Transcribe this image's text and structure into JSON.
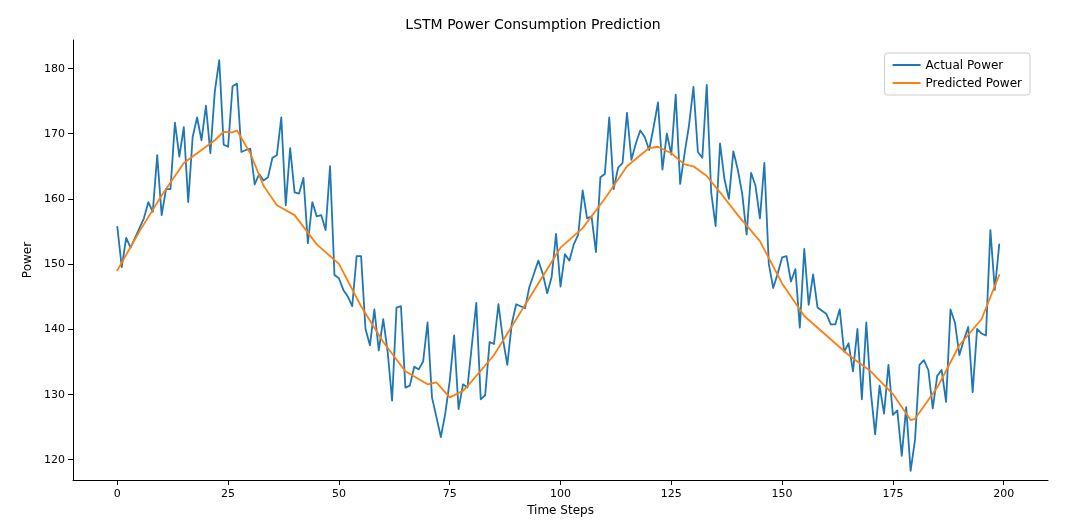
{
  "chart_data": {
    "type": "line",
    "title": "LSTM Power Consumption Prediction",
    "xlabel": "Time Steps",
    "ylabel": "Power",
    "xlim": [
      -10,
      210
    ],
    "xticks": [
      0,
      25,
      50,
      75,
      100,
      125,
      150,
      175,
      200
    ],
    "ylim": [
      116.8,
      184.4
    ],
    "yticks": [
      120,
      130,
      140,
      150,
      160,
      170,
      180
    ],
    "grid": false,
    "legend": "top right",
    "marker": "none",
    "line_style": "solid",
    "series": [
      {
        "name": "Actual Power",
        "color": "#1f77b4",
        "x": [
          0,
          1,
          2,
          3,
          4,
          5,
          6,
          7,
          8,
          9,
          10,
          11,
          12,
          13,
          14,
          15,
          16,
          17,
          18,
          19,
          20,
          21,
          22,
          23,
          24,
          25,
          26,
          27,
          28,
          29,
          30,
          31,
          32,
          33,
          34,
          35,
          36,
          37,
          38,
          39,
          40,
          41,
          42,
          43,
          44,
          45,
          46,
          47,
          48,
          49,
          50,
          51,
          52,
          53,
          54,
          55,
          56,
          57,
          58,
          59,
          60,
          61,
          62,
          63,
          64,
          65,
          66,
          67,
          68,
          69,
          70,
          71,
          72,
          73,
          74,
          75,
          76,
          77,
          78,
          79,
          80,
          81,
          82,
          83,
          84,
          85,
          86,
          87,
          88,
          89,
          90,
          91,
          92,
          93,
          94,
          95,
          96,
          97,
          98,
          99,
          100,
          101,
          102,
          103,
          104,
          105,
          106,
          107,
          108,
          109,
          110,
          111,
          112,
          113,
          114,
          115,
          116,
          117,
          118,
          119,
          120,
          121,
          122,
          123,
          124,
          125,
          126,
          127,
          128,
          129,
          130,
          131,
          132,
          133,
          134,
          135,
          136,
          137,
          138,
          139,
          140,
          141,
          142,
          143,
          144,
          145,
          146,
          147,
          148,
          149,
          150,
          151,
          152,
          153,
          154,
          155,
          156,
          157,
          158,
          159,
          160,
          161,
          162,
          163,
          164,
          165,
          166,
          167,
          168,
          169,
          170,
          171,
          172,
          173,
          174,
          175,
          176,
          177,
          178,
          179,
          180,
          181,
          182,
          183,
          184,
          185,
          186,
          187,
          188,
          189,
          190,
          191,
          192,
          193,
          194,
          195,
          196,
          197,
          198,
          199
        ],
        "values": [
          155.7,
          149.5,
          154,
          152.5,
          154,
          155.5,
          157,
          159.5,
          158,
          166.7,
          157.5,
          161.5,
          161.5,
          171.7,
          166.5,
          171,
          159.5,
          169.5,
          172.5,
          169,
          174.3,
          167,
          176.5,
          181.3,
          168.3,
          168,
          177.3,
          177.7,
          167.2,
          167.5,
          167.7,
          162.2,
          163.8,
          162.8,
          163.3,
          166.3,
          166.7,
          172.5,
          159,
          167.8,
          161,
          160.8,
          163.2,
          153.2,
          159.5,
          157.3,
          157.5,
          155.2,
          165,
          148.3,
          147.8,
          146,
          145,
          143.5,
          151.2,
          151.2,
          140,
          137.5,
          143,
          136.7,
          141.5,
          136.5,
          129,
          143.3,
          143.5,
          131,
          131.3,
          134.2,
          133.8,
          135,
          141,
          129.5,
          126.5,
          123.4,
          127,
          132,
          139,
          127.7,
          131.5,
          131,
          137.5,
          144,
          129.2,
          129.8,
          138,
          137.7,
          143.8,
          138.5,
          134.5,
          140.8,
          143.8,
          143.5,
          143.2,
          146.5,
          148.5,
          150.5,
          148.5,
          145.5,
          148,
          154.6,
          146.5,
          151.5,
          150.5,
          153,
          154.5,
          161.3,
          157,
          157.3,
          151.8,
          163.3,
          163.8,
          172.5,
          161.5,
          164.8,
          165.5,
          173.2,
          166,
          168.5,
          170.5,
          169.5,
          167.5,
          171,
          174.8,
          164.5,
          170,
          166.8,
          176,
          162.3,
          167,
          171.3,
          177.2,
          167.2,
          166.3,
          177.5,
          161,
          155.8,
          168.5,
          163,
          160,
          167.3,
          164.5,
          160.8,
          154.5,
          164,
          162,
          157,
          165.5,
          150,
          146.3,
          148.5,
          151,
          151.2,
          147.3,
          149.2,
          140.2,
          152.3,
          143.7,
          148.4,
          143.3,
          142.8,
          142.3,
          140.7,
          140.7,
          143,
          136.5,
          137.8,
          133.5,
          140,
          129.2,
          141,
          130.5,
          123.8,
          131.3,
          127,
          134.5,
          126.8,
          127.5,
          120.5,
          128,
          118.2,
          123,
          134.5,
          135.2,
          133.7,
          127.8,
          132.8,
          133.7,
          128.8,
          143,
          141,
          136,
          138.3,
          140.3,
          130.3,
          140,
          139.3,
          139,
          155.2,
          146,
          153
        ]
      },
      {
        "name": "Predicted Power",
        "color": "#ff7f0e",
        "x": [
          0,
          5,
          10,
          15,
          20,
          22,
          24,
          26,
          27,
          30,
          33,
          36,
          40,
          45,
          50,
          55,
          60,
          65,
          70,
          72,
          75,
          78,
          80,
          85,
          90,
          95,
          100,
          105,
          110,
          115,
          120,
          122,
          125,
          128,
          130,
          133,
          136,
          140,
          145,
          150,
          155,
          160,
          165,
          170,
          175,
          178,
          179,
          180,
          185,
          190,
          195,
          199
        ],
        "values": [
          149,
          155,
          160.5,
          165.5,
          168,
          169,
          170.3,
          170.2,
          170.5,
          167,
          162,
          159,
          157.5,
          153,
          150,
          143.5,
          138,
          133.5,
          131.5,
          131.8,
          129.5,
          130.5,
          132,
          136,
          141.5,
          147,
          152.5,
          155.5,
          160,
          165,
          167.8,
          168,
          167,
          165.3,
          165,
          163.5,
          161,
          157.5,
          153.5,
          147,
          142,
          139,
          136,
          133.5,
          130,
          127,
          126,
          126.2,
          131,
          137.5,
          141.5,
          148.3
        ]
      }
    ]
  }
}
